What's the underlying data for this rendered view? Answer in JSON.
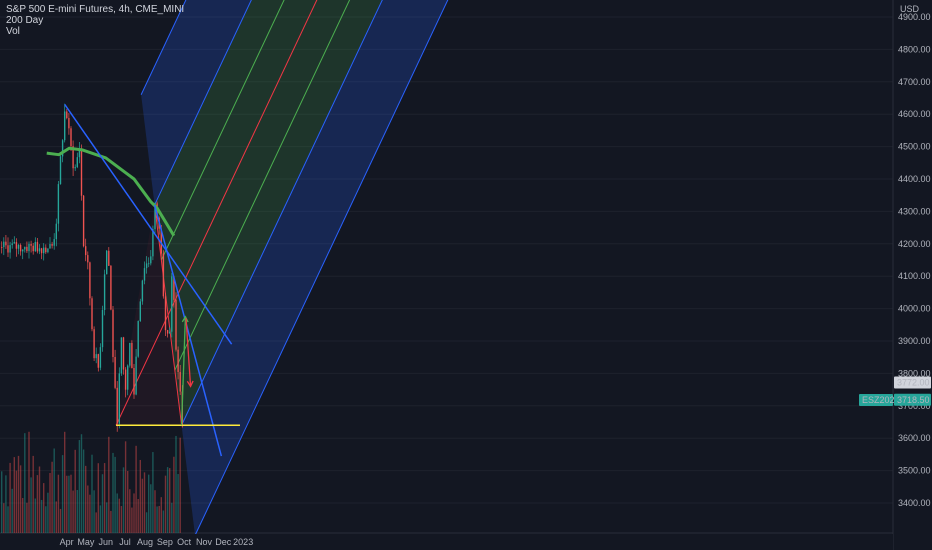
{
  "legend": {
    "line1": "S&P 500 E-mini Futures, 4h, CME_MINI",
    "line2": "200 Day",
    "line3": "Vol"
  },
  "chart_data": {
    "type": "candlestick",
    "title": "S&P 500 E-mini Futures, 4h, CME_MINI",
    "ylabel": "USD",
    "ylim": [
      3300,
      4950
    ],
    "y_ticks": [
      "4900.00",
      "4800.00",
      "4700.00",
      "4600.00",
      "4500.00",
      "4400.00",
      "4300.00",
      "4200.00",
      "4100.00",
      "4000.00",
      "3900.00",
      "3800.00",
      "3700.00",
      "3600.00",
      "3500.00",
      "3400.00"
    ],
    "x_ticks": [
      "Apr",
      "May",
      "Jun",
      "Jul",
      "Aug",
      "Sep",
      "Oct",
      "Nov",
      "Dec",
      "2023"
    ],
    "price_path": [
      {
        "date": "2022-03-08",
        "price": 4190
      },
      {
        "date": "2022-03-14",
        "price": 4250
      },
      {
        "date": "2022-03-21",
        "price": 4450
      },
      {
        "date": "2022-03-29",
        "price": 4630
      },
      {
        "date": "2022-04-04",
        "price": 4530
      },
      {
        "date": "2022-04-12",
        "price": 4420
      },
      {
        "date": "2022-04-20",
        "price": 4500
      },
      {
        "date": "2022-04-26",
        "price": 4200
      },
      {
        "date": "2022-05-02",
        "price": 4150
      },
      {
        "date": "2022-05-12",
        "price": 3870
      },
      {
        "date": "2022-05-20",
        "price": 3810
      },
      {
        "date": "2022-05-30",
        "price": 4150
      },
      {
        "date": "2022-06-03",
        "price": 4200
      },
      {
        "date": "2022-06-10",
        "price": 3900
      },
      {
        "date": "2022-06-17",
        "price": 3640
      },
      {
        "date": "2022-06-24",
        "price": 3900
      },
      {
        "date": "2022-06-30",
        "price": 3740
      },
      {
        "date": "2022-07-08",
        "price": 3900
      },
      {
        "date": "2022-07-14",
        "price": 3740
      },
      {
        "date": "2022-07-21",
        "price": 3990
      },
      {
        "date": "2022-07-29",
        "price": 4130
      },
      {
        "date": "2022-08-08",
        "price": 4150
      },
      {
        "date": "2022-08-16",
        "price": 4320
      },
      {
        "date": "2022-08-25",
        "price": 4200
      },
      {
        "date": "2022-08-31",
        "price": 3960
      },
      {
        "date": "2022-09-07",
        "price": 3910
      },
      {
        "date": "2022-09-12",
        "price": 4150
      },
      {
        "date": "2022-09-16",
        "price": 3880
      },
      {
        "date": "2022-09-22",
        "price": 3790
      },
      {
        "date": "2022-09-27",
        "price": 3640
      },
      {
        "date": "2022-09-30",
        "price": 3718
      }
    ],
    "series": [
      {
        "name": "200 Day",
        "color": "#4caf50",
        "values": [
          {
            "date": "2022-03-01",
            "price": 4480
          },
          {
            "date": "2022-03-20",
            "price": 4475
          },
          {
            "date": "2022-04-05",
            "price": 4495
          },
          {
            "date": "2022-04-25",
            "price": 4490
          },
          {
            "date": "2022-06-01",
            "price": 4465
          },
          {
            "date": "2022-07-15",
            "price": 4400
          },
          {
            "date": "2022-08-10",
            "price": 4330
          },
          {
            "date": "2022-08-20",
            "price": 4310
          },
          {
            "date": "2022-09-15",
            "price": 4225
          }
        ]
      }
    ],
    "price_labels": [
      {
        "label": "3772.00",
        "value": 3772,
        "color": "#d1d4dc",
        "text_color": "#131722"
      },
      {
        "label": "ESZ2022",
        "value": 3718,
        "color": "#26a69a",
        "text_color": "#ffffff"
      },
      {
        "label": "3718.50",
        "value": 3718.5,
        "color": "#26a69a",
        "text_color": "#ffffff"
      }
    ],
    "annotations": {
      "trend_lines": [
        {
          "from": {
            "date": "2022-03-29",
            "price": 4630
          },
          "to": {
            "date": "2022-12-14",
            "price": 3890
          },
          "color": "#2962ff"
        },
        {
          "from": {
            "date": "2022-08-16",
            "price": 4320
          },
          "to": {
            "date": "2022-11-28",
            "price": 3545
          },
          "color": "#2962ff"
        }
      ],
      "horizontal_support": {
        "price": 3640,
        "from": "2022-06-17",
        "to": "2022-12-27",
        "color": "#ffeb3b"
      },
      "pitchfork": {
        "anchors": [
          {
            "date": "2022-06-17",
            "price": 3640
          },
          {
            "date": "2022-08-16",
            "price": 4320
          },
          {
            "date": "2022-09-27",
            "price": 3640
          }
        ],
        "median_color": "#f23645",
        "inner_color": "#4caf50",
        "outer_color": "#2962ff"
      },
      "arrows": [
        {
          "from": {
            "date": "2022-09-27",
            "price": 3640
          },
          "to": {
            "date": "2022-10-03",
            "price": 3975
          },
          "color": "#4caf50"
        },
        {
          "from": {
            "date": "2022-10-04",
            "price": 3970
          },
          "to": {
            "date": "2022-10-11",
            "price": 3760
          },
          "color": "#f23645"
        }
      ]
    },
    "volume": {
      "label": "Vol"
    },
    "grid": true
  }
}
